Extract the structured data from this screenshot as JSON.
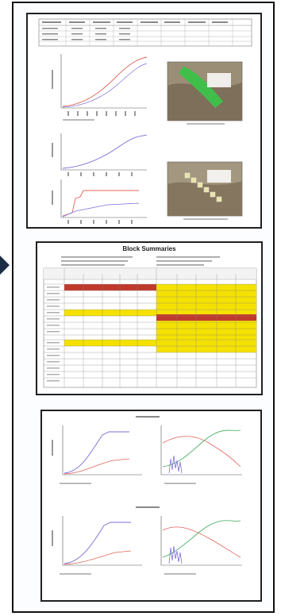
{
  "block_summary": {
    "title": "Block Summaries"
  },
  "colors": {
    "frame": "#101010",
    "arrow": "#1c2d45",
    "highlight_red": "#c0392b",
    "highlight_yellow": "#f4e100",
    "series_blue": "#7a6fd6",
    "series_red": "#e0655a",
    "series_green": "#3aa85a",
    "map_green": "#3fbf4a"
  },
  "icons": {
    "arrow": "right-pointing-triangle-icon"
  }
}
